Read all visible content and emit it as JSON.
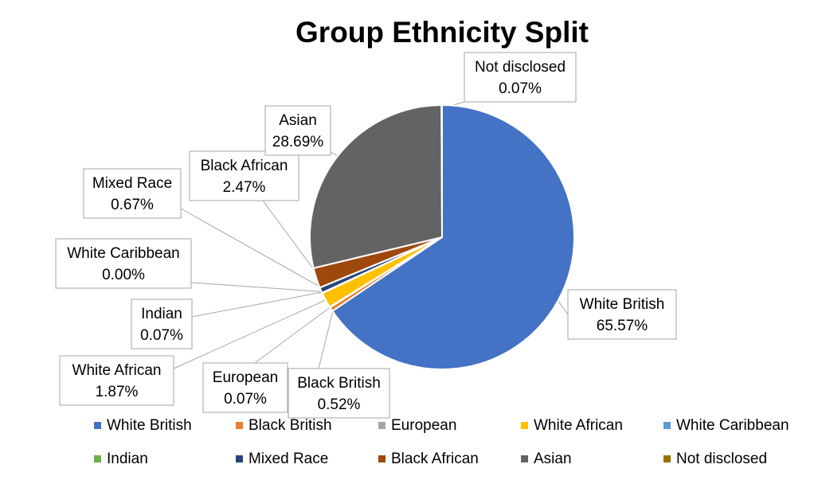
{
  "chart_data": {
    "type": "pie",
    "title": "Group Ethnicity Split",
    "categories": [
      "White British",
      "Black British",
      "European",
      "White African",
      "White Caribbean",
      "Indian",
      "Mixed Race",
      "Black African",
      "Asian",
      "Not disclosed"
    ],
    "values": [
      65.57,
      0.52,
      0.07,
      1.87,
      0.0,
      0.07,
      0.67,
      2.47,
      28.69,
      0.07
    ],
    "data_labels": [
      "65.57%",
      "0.52%",
      "0.07%",
      "1.87%",
      "0.00%",
      "0.07%",
      "0.67%",
      "2.47%",
      "28.69%",
      "0.07%"
    ],
    "colors": [
      "#4472C4",
      "#ED7D31",
      "#A5A5A5",
      "#FFC000",
      "#5B9BD5",
      "#70AD47",
      "#264478",
      "#9E480E",
      "#636363",
      "#997300"
    ],
    "legend_position": "bottom"
  }
}
